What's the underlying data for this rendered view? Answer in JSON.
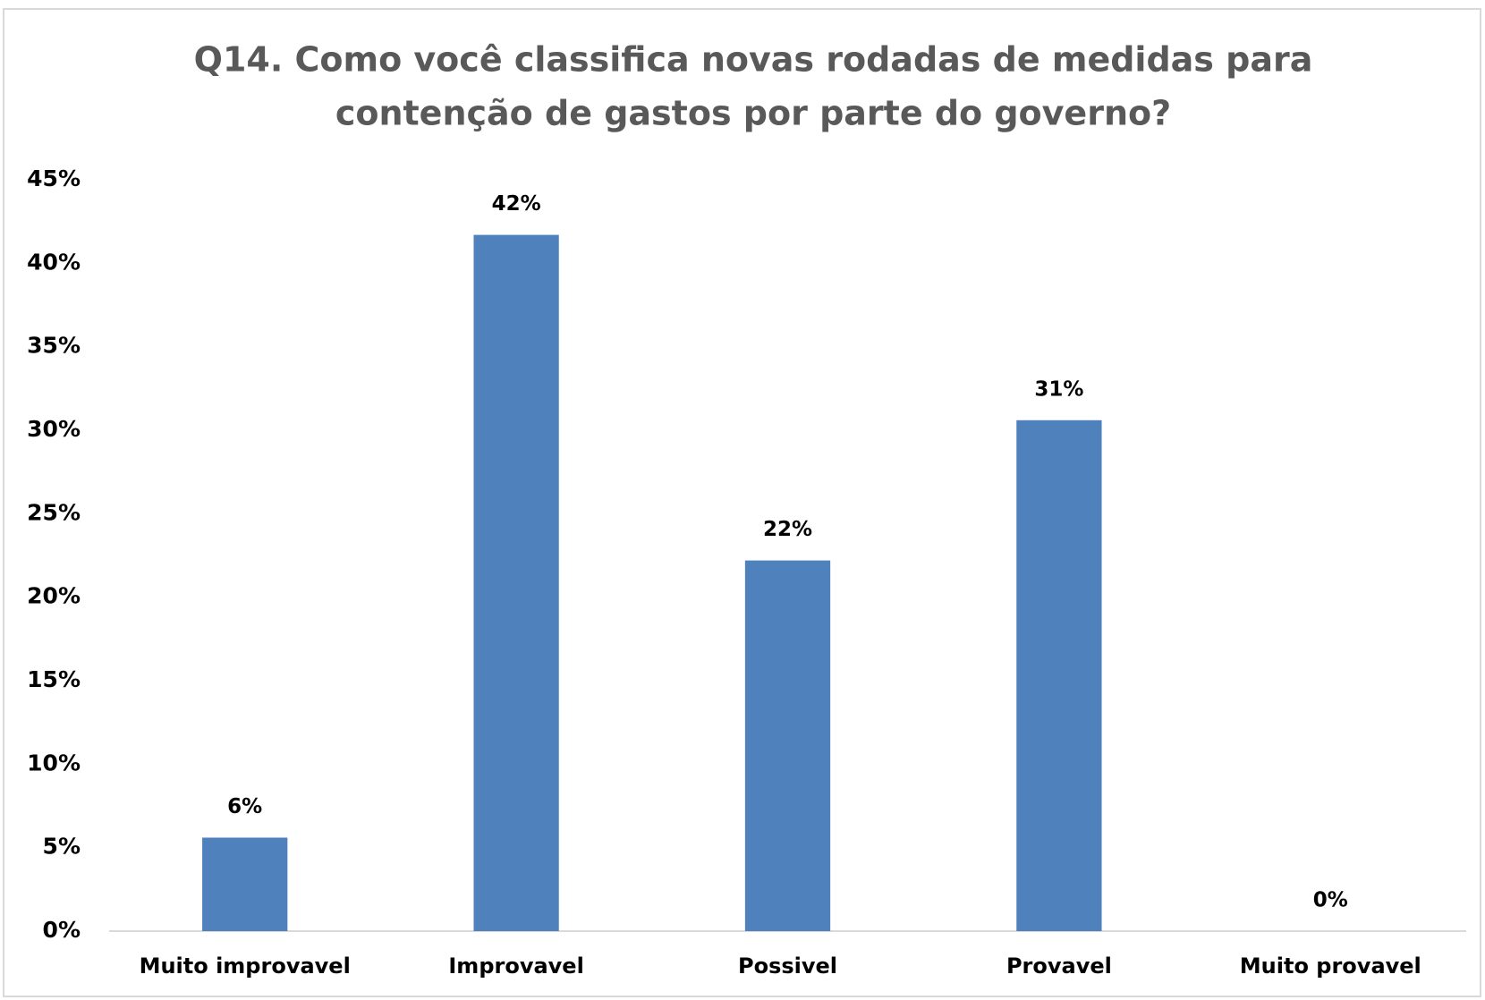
{
  "chart_data": {
    "type": "bar",
    "title": [
      "Q14. Como você classifica novas rodadas de medidas para",
      "contenção de gastos por parte do governo?"
    ],
    "categories": [
      "Muito improvavel",
      "Improvavel",
      "Possivel",
      "Provavel",
      "Muito provavel"
    ],
    "values": [
      5.6,
      41.7,
      22.2,
      30.6,
      0
    ],
    "value_labels": [
      "6%",
      "42%",
      "22%",
      "31%",
      "0%"
    ],
    "color": "#4f81bd",
    "ylim": [
      0,
      45
    ],
    "yticks": [
      {
        "value": 0,
        "label": "0%"
      },
      {
        "value": 5,
        "label": "5%"
      },
      {
        "value": 10,
        "label": "10%"
      },
      {
        "value": 15,
        "label": "15%"
      },
      {
        "value": 20,
        "label": "20%"
      },
      {
        "value": 25,
        "label": "25%"
      },
      {
        "value": 30,
        "label": "30%"
      },
      {
        "value": 35,
        "label": "35%"
      },
      {
        "value": 40,
        "label": "40%"
      },
      {
        "value": 45,
        "label": "45%"
      }
    ],
    "grid": false
  }
}
